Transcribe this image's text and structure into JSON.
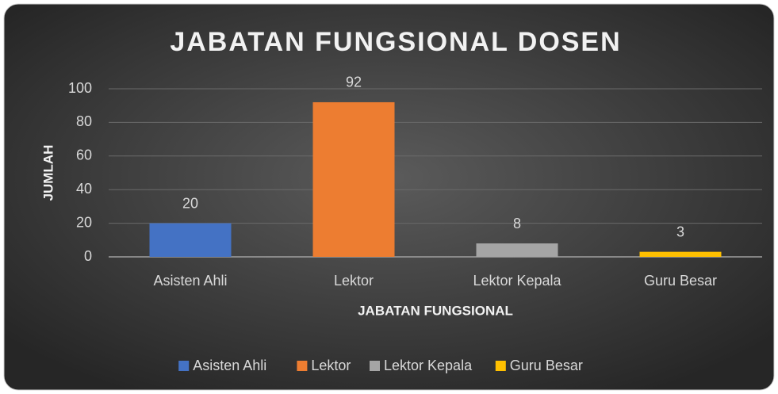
{
  "chart_data": {
    "type": "bar",
    "title": "JABATAN FUNGSIONAL DOSEN",
    "x_label": "JABATAN FUNGSIONAL",
    "y_label": "JUMLAH",
    "categories": [
      "Asisten Ahli",
      "Lektor",
      "Lektor Kepala",
      "Guru Besar"
    ],
    "values": [
      20,
      92,
      8,
      3
    ],
    "colors": [
      "#4472c4",
      "#ed7d31",
      "#a5a5a5",
      "#ffc000"
    ],
    "ylim": [
      0,
      100
    ],
    "yticks": [
      0,
      20,
      40,
      60,
      80,
      100
    ],
    "grid": true,
    "legend": "bottom"
  }
}
